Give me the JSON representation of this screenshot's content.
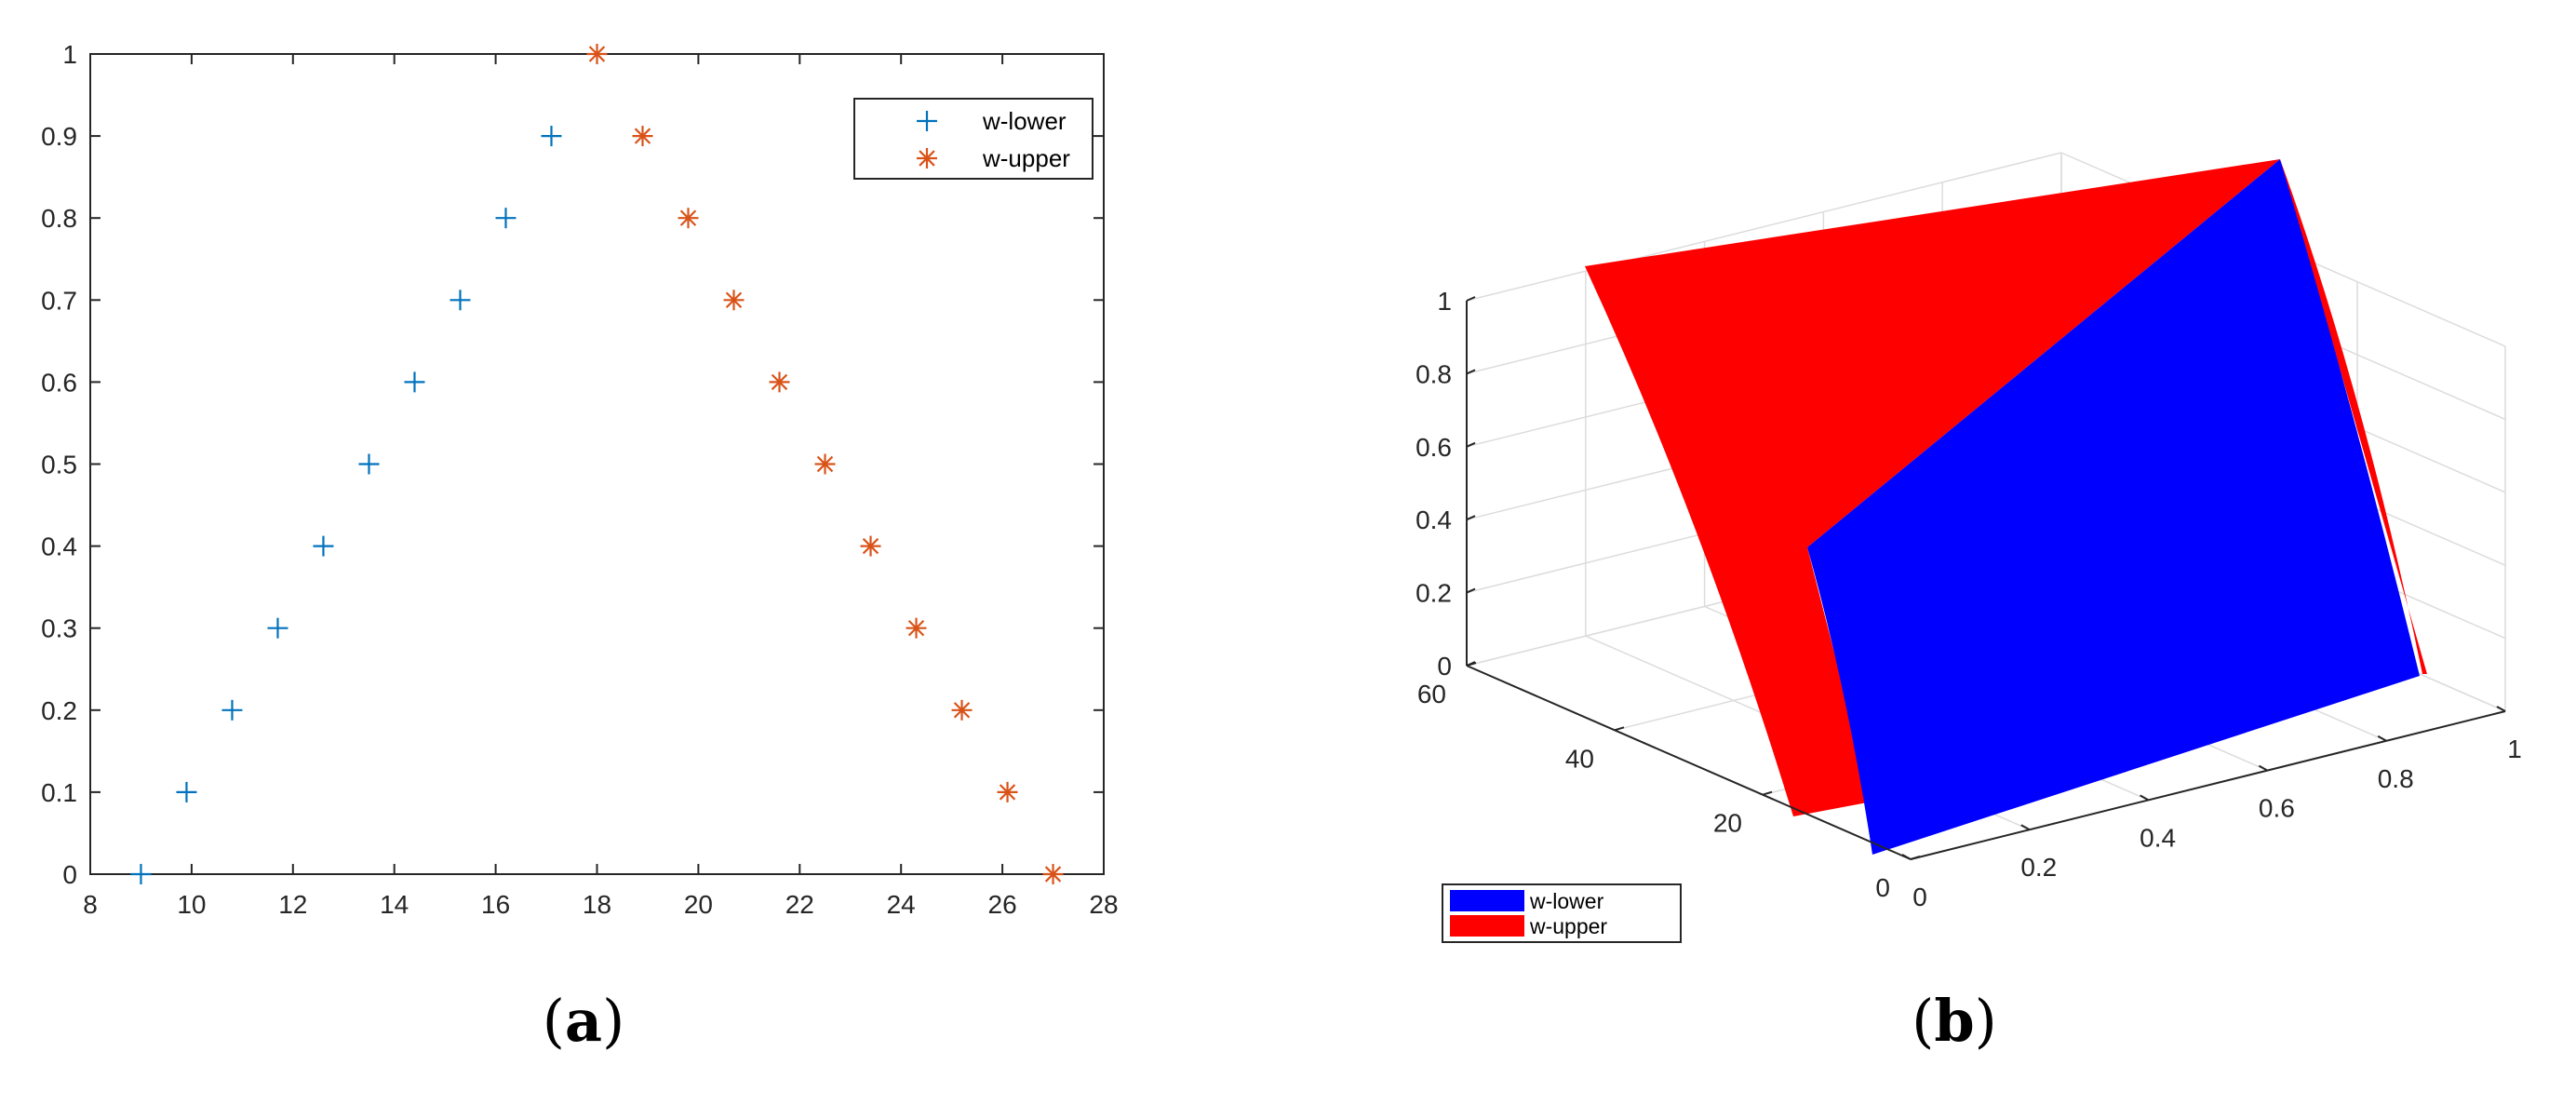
{
  "chart_data": [
    {
      "type": "scatter",
      "caption": "a",
      "xlim": [
        8,
        28
      ],
      "ylim": [
        0,
        1
      ],
      "xticks": [
        8,
        10,
        12,
        14,
        16,
        18,
        20,
        22,
        24,
        26,
        28
      ],
      "yticks": [
        0,
        0.1,
        0.2,
        0.3,
        0.4,
        0.5,
        0.6,
        0.7,
        0.8,
        0.9,
        1
      ],
      "grid": false,
      "legend_position": "top-right",
      "series": [
        {
          "name": "w-lower",
          "marker": "plus",
          "color": "#0072BD",
          "x": [
            9,
            9.9,
            10.8,
            11.7,
            12.6,
            13.5,
            14.4,
            15.3,
            16.2,
            17.1
          ],
          "y": [
            0,
            0.1,
            0.2,
            0.3,
            0.4,
            0.5,
            0.6,
            0.7,
            0.8,
            0.9
          ]
        },
        {
          "name": "w-upper",
          "marker": "asterisk",
          "color": "#D95319",
          "x": [
            18,
            18.9,
            19.8,
            20.7,
            21.6,
            22.5,
            23.4,
            24.3,
            25.2,
            26.1,
            27
          ],
          "y": [
            1,
            0.9,
            0.8,
            0.7,
            0.6,
            0.5,
            0.4,
            0.3,
            0.2,
            0.1,
            0
          ]
        }
      ]
    },
    {
      "type": "surface",
      "caption": "b",
      "xlim": [
        0,
        1
      ],
      "ylim": [
        0,
        60
      ],
      "zlim": [
        0,
        1
      ],
      "xticks": [
        0,
        0.2,
        0.4,
        0.6,
        0.8,
        1
      ],
      "yticks": [
        0,
        20,
        40,
        60
      ],
      "zticks": [
        0,
        0.2,
        0.4,
        0.6,
        0.8,
        1
      ],
      "grid": true,
      "legend_position": "bottom-left",
      "series": [
        {
          "name": "w-lower",
          "color": "#0000FF"
        },
        {
          "name": "w-upper",
          "color": "#FF0000"
        }
      ]
    }
  ]
}
